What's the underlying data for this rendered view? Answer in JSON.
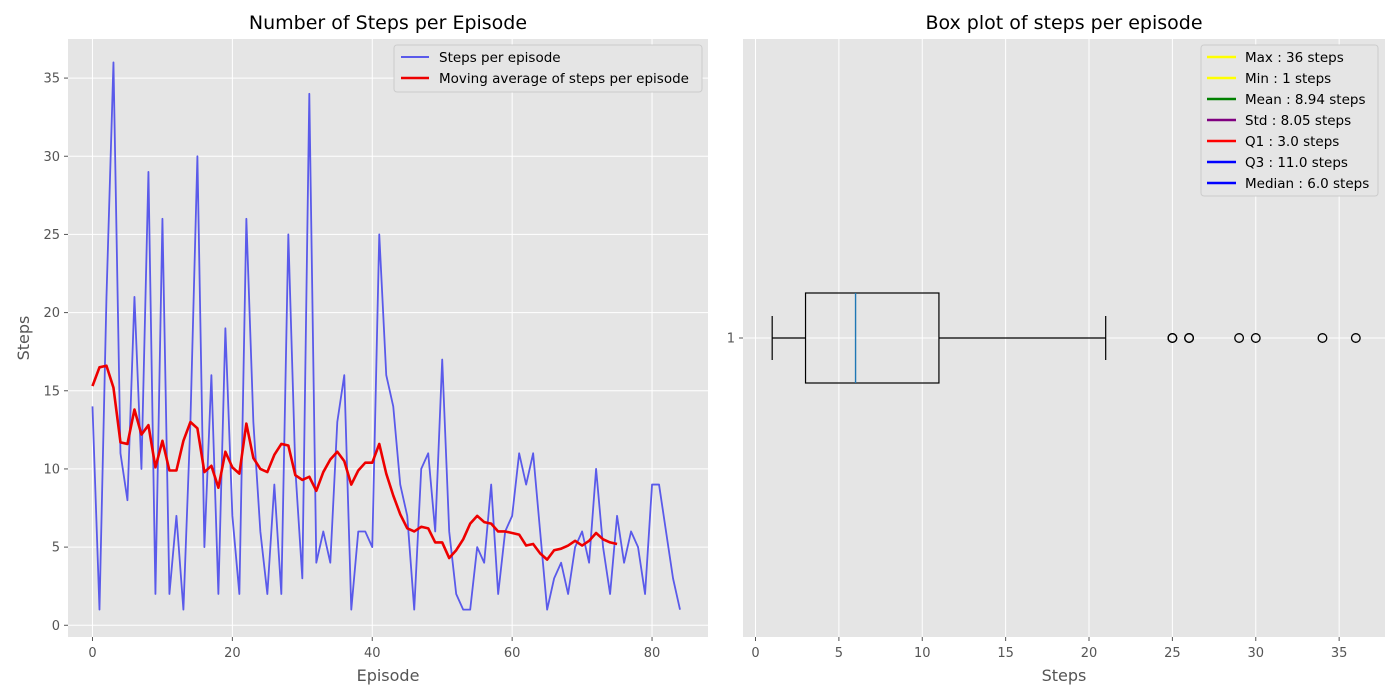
{
  "chart_data": [
    {
      "type": "line",
      "title": "Number of Steps per Episode",
      "xlabel": "Episode",
      "ylabel": "Steps",
      "xlim": [
        -3.5,
        88
      ],
      "ylim": [
        -0.75,
        37.5
      ],
      "xticks": [
        0,
        20,
        40,
        60,
        80
      ],
      "yticks": [
        0,
        5,
        10,
        15,
        20,
        25,
        30,
        35
      ],
      "grid": true,
      "legend_position": "upper right",
      "series": [
        {
          "name": "Steps per episode",
          "color": "#5a5aea",
          "x": [
            0,
            1,
            2,
            3,
            4,
            5,
            6,
            7,
            8,
            9,
            10,
            11,
            12,
            13,
            14,
            15,
            16,
            17,
            18,
            19,
            20,
            21,
            22,
            23,
            24,
            25,
            26,
            27,
            28,
            29,
            30,
            31,
            32,
            33,
            34,
            35,
            36,
            37,
            38,
            39,
            40,
            41,
            42,
            43,
            44,
            45,
            46,
            47,
            48,
            49,
            50,
            51,
            52,
            53,
            54,
            55,
            56,
            57,
            58,
            59,
            60,
            61,
            62,
            63,
            64,
            65,
            66,
            67,
            68,
            69,
            70,
            71,
            72,
            73,
            74,
            75,
            76,
            77,
            78,
            79,
            80,
            81,
            82,
            83,
            84
          ],
          "values": [
            14,
            1,
            21,
            36,
            11,
            8,
            21,
            10,
            29,
            2,
            26,
            2,
            7,
            1,
            13,
            30,
            5,
            16,
            2,
            19,
            7,
            2,
            26,
            13,
            6,
            2,
            9,
            2,
            25,
            10,
            3,
            34,
            4,
            6,
            4,
            13,
            16,
            1,
            6,
            6,
            5,
            25,
            16,
            14,
            9,
            7,
            1,
            10,
            11,
            6,
            17,
            6,
            2,
            1,
            1,
            5,
            4,
            9,
            2,
            6,
            7,
            11,
            9,
            11,
            6,
            1,
            3,
            4,
            2,
            5,
            6,
            4,
            10,
            5,
            2,
            7,
            4,
            6,
            5,
            2,
            9,
            9,
            6,
            3,
            1
          ]
        },
        {
          "name": "Moving average of steps per episode",
          "color": "#ee0000",
          "x": [
            0,
            1,
            2,
            3,
            4,
            5,
            6,
            7,
            8,
            9,
            10,
            11,
            12,
            13,
            14,
            15,
            16,
            17,
            18,
            19,
            20,
            21,
            22,
            23,
            24,
            25,
            26,
            27,
            28,
            29,
            30,
            31,
            32,
            33,
            34,
            35,
            36,
            37,
            38,
            39,
            40,
            41,
            42,
            43,
            44,
            45,
            46,
            47,
            48,
            49,
            50,
            51,
            52,
            53,
            54,
            55,
            56,
            57,
            58,
            59,
            60,
            61,
            62,
            63,
            64,
            65,
            66,
            67,
            68,
            69,
            70,
            71,
            72,
            73,
            74,
            75
          ],
          "values": [
            15.3,
            16.5,
            16.6,
            15.2,
            11.7,
            11.6,
            13.8,
            12.2,
            12.8,
            10.1,
            11.8,
            9.9,
            9.9,
            11.8,
            13.0,
            12.6,
            9.8,
            10.2,
            8.8,
            11.1,
            10.1,
            9.7,
            12.9,
            10.7,
            10.0,
            9.8,
            10.9,
            11.6,
            11.5,
            9.6,
            9.3,
            9.5,
            8.6,
            9.8,
            10.6,
            11.1,
            10.5,
            9.0,
            9.9,
            10.4,
            10.4,
            11.6,
            9.7,
            8.3,
            7.1,
            6.2,
            6.0,
            6.3,
            6.2,
            5.3,
            5.3,
            4.3,
            4.8,
            5.5,
            6.5,
            7.0,
            6.6,
            6.5,
            6.0,
            6.0,
            5.9,
            5.8,
            5.1,
            5.2,
            4.6,
            4.2,
            4.8,
            4.9,
            5.1,
            5.4,
            5.1,
            5.4,
            5.9,
            5.5,
            5.3,
            5.2
          ]
        }
      ]
    },
    {
      "type": "box",
      "title": "Box plot of steps per episode",
      "xlabel": "Steps",
      "ylabel": "",
      "xlim": [
        -0.75,
        37.75
      ],
      "xticks": [
        0,
        5,
        10,
        15,
        20,
        25,
        30,
        35
      ],
      "yticks": [
        1
      ],
      "grid": true,
      "legend_position": "upper right",
      "box": {
        "whisker_low": 1,
        "q1": 3,
        "median": 6,
        "q3": 11,
        "whisker_high": 21,
        "outliers": [
          25,
          25,
          26,
          26,
          29,
          30,
          34,
          36
        ]
      },
      "legend": [
        {
          "label": "Max : 36 steps",
          "color": "#ffff00"
        },
        {
          "label": "Min : 1 steps",
          "color": "#ffff00"
        },
        {
          "label": "Mean : 8.94 steps",
          "color": "#008000"
        },
        {
          "label": "Std : 8.05 steps",
          "color": "#800080"
        },
        {
          "label": "Q1 : 3.0 steps",
          "color": "#ff0000"
        },
        {
          "label": "Q3 : 11.0 steps",
          "color": "#0000ff"
        },
        {
          "label": "Median : 6.0 steps",
          "color": "#0000ff"
        }
      ],
      "colors": {
        "median_line": "#1f77b4",
        "box_edge": "#000000"
      }
    }
  ],
  "colors": {
    "axes_background": "#e5e5e5",
    "grid": "#ffffff",
    "figure_background": "#ffffff"
  }
}
